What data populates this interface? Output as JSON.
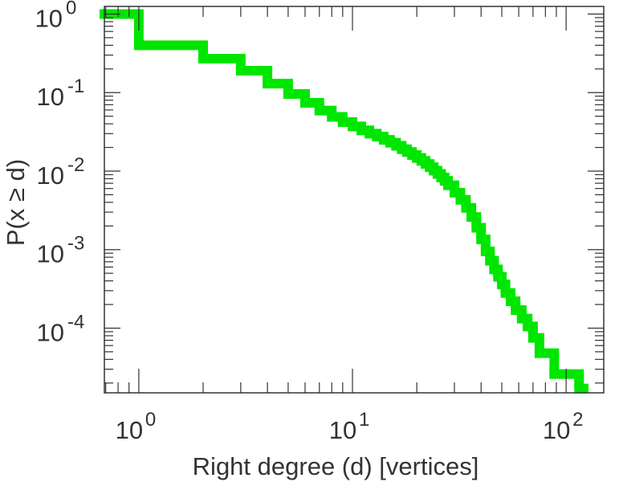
{
  "chart_data": {
    "type": "line",
    "title": "",
    "xlabel": "Right degree (d) [vertices]",
    "ylabel": "P(x ≥ d)",
    "xscale": "log",
    "yscale": "log",
    "xlim": [
      0.69,
      150
    ],
    "ylim": [
      1.5e-05,
      1.25
    ],
    "grid": false,
    "legend": "none",
    "step": "post",
    "x_ticks": [
      {
        "value": 1,
        "base": "10",
        "exp": "0"
      },
      {
        "value": 10,
        "base": "10",
        "exp": "1"
      },
      {
        "value": 100,
        "base": "10",
        "exp": "2"
      }
    ],
    "y_ticks": [
      {
        "value": 1,
        "base": "10",
        "exp": "0"
      },
      {
        "value": 0.1,
        "base": "10",
        "exp": "-1"
      },
      {
        "value": 0.01,
        "base": "10",
        "exp": "-2"
      },
      {
        "value": 0.001,
        "base": "10",
        "exp": "-3"
      },
      {
        "value": 0.0001,
        "base": "10",
        "exp": "-4"
      }
    ],
    "series": [
      {
        "color": "#00e600",
        "x": [
          0.69,
          1,
          2,
          3,
          4,
          5,
          6,
          7,
          8,
          9,
          10,
          11,
          12,
          13,
          14,
          15,
          16,
          17,
          18,
          19,
          20,
          21,
          22,
          23,
          24,
          25,
          26,
          27,
          28,
          30,
          32,
          34,
          36,
          38,
          40,
          42,
          44,
          46,
          48,
          50,
          52,
          55,
          58,
          62,
          66,
          70,
          75,
          88,
          115
        ],
        "y": [
          1.0,
          0.4,
          0.27,
          0.19,
          0.13,
          0.096,
          0.074,
          0.059,
          0.049,
          0.042,
          0.037,
          0.033,
          0.03,
          0.0275,
          0.025,
          0.023,
          0.021,
          0.019,
          0.0175,
          0.016,
          0.0147,
          0.0135,
          0.0123,
          0.0112,
          0.0101,
          0.0092,
          0.0083,
          0.0075,
          0.0066,
          0.0053,
          0.0043,
          0.0034,
          0.0026,
          0.0019,
          0.00135,
          0.00095,
          0.00072,
          0.00056,
          0.00045,
          0.00036,
          0.00028,
          0.00022,
          0.00017,
          0.000132,
          0.000105,
          7.5e-05,
          4.8e-05,
          2.6e-05,
          1.7e-05
        ]
      }
    ]
  }
}
